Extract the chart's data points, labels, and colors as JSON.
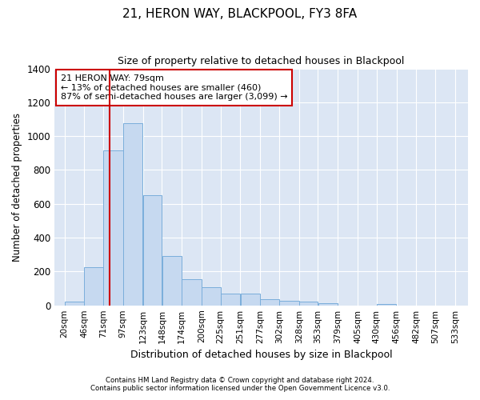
{
  "title": "21, HERON WAY, BLACKPOOL, FY3 8FA",
  "subtitle": "Size of property relative to detached houses in Blackpool",
  "xlabel": "Distribution of detached houses by size in Blackpool",
  "ylabel": "Number of detached properties",
  "footer_line1": "Contains HM Land Registry data © Crown copyright and database right 2024.",
  "footer_line2": "Contains public sector information licensed under the Open Government Licence v3.0.",
  "annotation_title": "21 HERON WAY: 79sqm",
  "annotation_line1": "← 13% of detached houses are smaller (460)",
  "annotation_line2": "87% of semi-detached houses are larger (3,099) →",
  "vline_x": 79,
  "bar_left_edges": [
    20,
    46,
    71,
    97,
    123,
    148,
    174,
    200,
    225,
    251,
    277,
    302,
    328,
    353,
    379,
    405,
    430,
    456,
    482,
    507
  ],
  "bar_widths": [
    26,
    25,
    26,
    26,
    25,
    26,
    26,
    25,
    26,
    26,
    25,
    26,
    25,
    26,
    26,
    25,
    26,
    26,
    25,
    26
  ],
  "bar_heights": [
    20,
    225,
    915,
    1075,
    650,
    290,
    155,
    105,
    70,
    70,
    35,
    25,
    20,
    15,
    0,
    0,
    10,
    0,
    0,
    0
  ],
  "bar_color": "#c6d9f0",
  "bar_edge_color": "#7aaedb",
  "vline_color": "#cc0000",
  "annotation_box_edge": "#cc0000",
  "annotation_box_bg": "#ffffff",
  "figure_bg": "#ffffff",
  "plot_bg_color": "#dce6f4",
  "ylim": [
    0,
    1400
  ],
  "yticks": [
    0,
    200,
    400,
    600,
    800,
    1000,
    1200,
    1400
  ],
  "xtick_labels": [
    "20sqm",
    "46sqm",
    "71sqm",
    "97sqm",
    "123sqm",
    "148sqm",
    "174sqm",
    "200sqm",
    "225sqm",
    "251sqm",
    "277sqm",
    "302sqm",
    "328sqm",
    "353sqm",
    "379sqm",
    "405sqm",
    "430sqm",
    "456sqm",
    "482sqm",
    "507sqm",
    "533sqm"
  ],
  "xtick_positions": [
    20,
    46,
    71,
    97,
    123,
    148,
    174,
    200,
    225,
    251,
    277,
    302,
    328,
    353,
    379,
    405,
    430,
    456,
    482,
    507,
    533
  ],
  "xlim": [
    7,
    550
  ]
}
